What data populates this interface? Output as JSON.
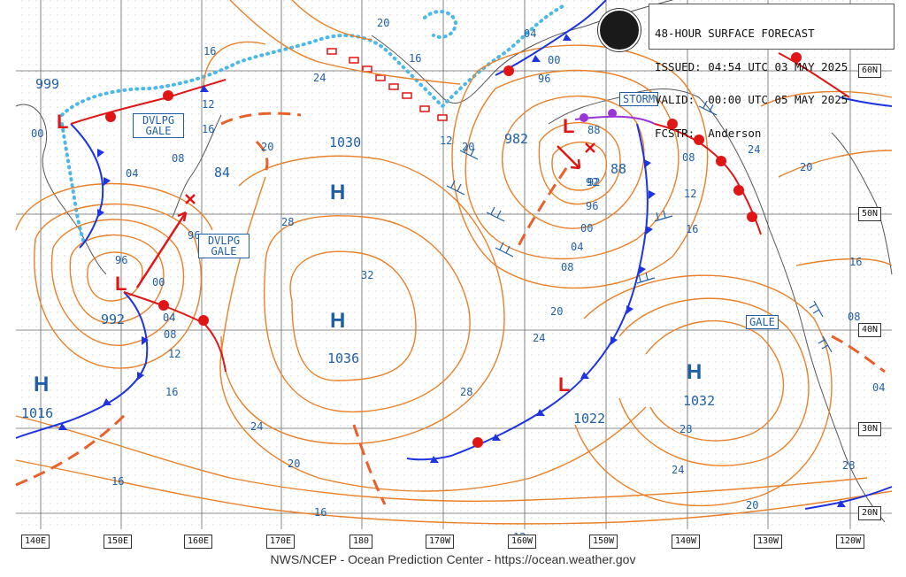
{
  "header": {
    "line1": "48-HOUR SURFACE FORECAST",
    "line2": "ISSUED: 04:54 UTC 03 MAY 2025",
    "line3": "VALID:  00:00 UTC 05 MAY 2025",
    "line4": "FCSTR:  Anderson"
  },
  "logo": {
    "icon": "noaa-logo",
    "text": "NOAA"
  },
  "credit": "NWS/NCEP - Ocean Prediction Center - https://ocean.weather.gov",
  "longitude_labels": [
    "140E",
    "150E",
    "160E",
    "170E",
    "180",
    "170W",
    "160W",
    "150W",
    "140W",
    "130W",
    "120W"
  ],
  "latitude_labels": [
    "60N",
    "50N",
    "40N",
    "30N",
    "20N"
  ],
  "pressure_centers": [
    {
      "type": "H",
      "value": "1030"
    },
    {
      "type": "H",
      "value": "1036"
    },
    {
      "type": "H",
      "value": "1016"
    },
    {
      "type": "H",
      "value": "1032"
    },
    {
      "type": "L",
      "value": "992"
    },
    {
      "type": "L",
      "value": "999"
    },
    {
      "type": "L",
      "value": "982"
    },
    {
      "type": "L",
      "value": "84"
    },
    {
      "type": "L",
      "value": "88"
    },
    {
      "type": "L",
      "value": "1022"
    }
  ],
  "warnings": [
    "DVLPG GALE",
    "DVLPG GALE",
    "STORM",
    "GALE"
  ],
  "isobar_labels": [
    "20",
    "16",
    "12",
    "08",
    "04",
    "00",
    "96",
    "92",
    "88",
    "24",
    "28",
    "32",
    "16",
    "20",
    "24",
    "28",
    "12",
    "08",
    "04",
    "00",
    "96",
    "92",
    "16",
    "20",
    "24",
    "28",
    "20",
    "24",
    "16",
    "12",
    "08",
    "04",
    "16",
    "08",
    "04",
    "00",
    "96",
    "16",
    "12",
    "08",
    "04",
    "00",
    "96",
    "20",
    "16",
    "20",
    "12",
    "24",
    "28",
    "24",
    "20",
    "16"
  ],
  "colors": {
    "isobar": "#e8812a",
    "label": "#1f5fa8",
    "cold_front": "#1e34e0",
    "warm_front": "#e01616",
    "occluded": "#9a35d6",
    "ice": "#4cb8e8",
    "coast": "#555555"
  }
}
